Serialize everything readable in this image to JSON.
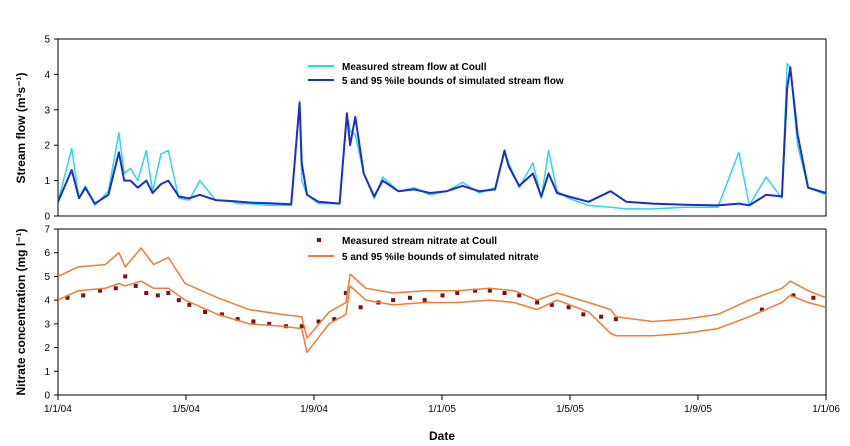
{
  "colors": {
    "measured_flow": "#2ed6e6",
    "sim_flow": "#1a2fc9",
    "measured_nitrate": "#7a1010",
    "sim_nitrate": "#ee7d3a"
  },
  "x_axis": {
    "label": "Date",
    "ticks": [
      "1/1/04",
      "1/5/04",
      "1/9/04",
      "1/1/05",
      "1/5/05",
      "1/9/05",
      "1/1/06"
    ]
  },
  "chart_data": [
    {
      "type": "line",
      "ylabel": "Stream flow (m³s⁻¹)",
      "ylim": [
        0,
        5
      ],
      "yticks": [
        "0",
        "1",
        "2",
        "3",
        "4",
        "5"
      ],
      "xlim": [
        "2004-01-01",
        "2006-01-01"
      ],
      "legend_position": "top-center",
      "series": [
        {
          "name": "Measured stream flow at Coull",
          "x": [
            "2004-01-01",
            "2004-01-14",
            "2004-01-21",
            "2004-01-27",
            "2004-02-05",
            "2004-02-18",
            "2004-02-28",
            "2004-03-04",
            "2004-03-10",
            "2004-03-17",
            "2004-03-25",
            "2004-03-31",
            "2004-04-08",
            "2004-04-15",
            "2004-04-25",
            "2004-05-05",
            "2004-05-15",
            "2004-05-30",
            "2004-06-15",
            "2004-06-20",
            "2004-07-01",
            "2004-07-20",
            "2004-08-10",
            "2004-08-18",
            "2004-08-20",
            "2004-08-25",
            "2004-09-05",
            "2004-09-25",
            "2004-10-02",
            "2004-10-05",
            "2004-10-10",
            "2004-10-18",
            "2004-10-28",
            "2004-11-05",
            "2004-11-20",
            "2004-12-05",
            "2004-12-20",
            "2005-01-05",
            "2005-01-20",
            "2005-02-05",
            "2005-02-20",
            "2005-03-01",
            "2005-03-05",
            "2005-03-15",
            "2005-03-28",
            "2005-04-05",
            "2005-04-12",
            "2005-04-20",
            "2005-05-01",
            "2005-05-20",
            "2005-06-10",
            "2005-06-25",
            "2005-07-20",
            "2005-08-20",
            "2005-09-20",
            "2005-10-10",
            "2005-10-20",
            "2005-11-05",
            "2005-11-20",
            "2005-11-25",
            "2005-11-28",
            "2005-12-05",
            "2005-12-15",
            "2006-01-01"
          ],
          "y": [
            0.4,
            1.9,
            0.5,
            0.85,
            0.3,
            0.7,
            2.35,
            1.2,
            1.35,
            1.0,
            1.85,
            0.7,
            1.75,
            1.85,
            0.5,
            0.45,
            1.0,
            0.45,
            0.4,
            0.35,
            0.35,
            0.3,
            0.3,
            3.25,
            1.0,
            0.6,
            0.35,
            0.35,
            2.85,
            2.4,
            2.3,
            1.2,
            0.5,
            1.1,
            0.7,
            0.8,
            0.6,
            0.7,
            0.95,
            0.65,
            0.8,
            1.8,
            1.5,
            0.8,
            1.5,
            0.5,
            1.85,
            0.7,
            0.5,
            0.3,
            0.25,
            0.2,
            0.2,
            0.25,
            0.25,
            1.8,
            0.3,
            1.1,
            0.5,
            4.3,
            4.2,
            2.0,
            0.8,
            0.6
          ]
        },
        {
          "name": "5 and 95 %ile bounds of simulated stream flow",
          "x": [
            "2004-01-01",
            "2004-01-14",
            "2004-01-21",
            "2004-01-27",
            "2004-02-05",
            "2004-02-18",
            "2004-02-28",
            "2004-03-04",
            "2004-03-10",
            "2004-03-17",
            "2004-03-25",
            "2004-03-31",
            "2004-04-08",
            "2004-04-15",
            "2004-04-25",
            "2004-05-05",
            "2004-05-15",
            "2004-05-30",
            "2004-06-15",
            "2004-07-01",
            "2004-07-20",
            "2004-08-10",
            "2004-08-18",
            "2004-08-20",
            "2004-08-25",
            "2004-09-05",
            "2004-09-25",
            "2004-10-02",
            "2004-10-05",
            "2004-10-10",
            "2004-10-18",
            "2004-10-28",
            "2004-11-05",
            "2004-11-20",
            "2004-12-05",
            "2004-12-20",
            "2005-01-05",
            "2005-01-20",
            "2005-02-05",
            "2005-02-20",
            "2005-03-01",
            "2005-03-05",
            "2005-03-15",
            "2005-03-28",
            "2005-04-05",
            "2005-04-12",
            "2005-04-20",
            "2005-05-01",
            "2005-05-20",
            "2005-06-10",
            "2005-06-25",
            "2005-07-20",
            "2005-08-20",
            "2005-09-20",
            "2005-10-10",
            "2005-10-20",
            "2005-11-05",
            "2005-11-20",
            "2005-11-25",
            "2005-11-28",
            "2005-12-05",
            "2005-12-15",
            "2006-01-01"
          ],
          "y": [
            0.4,
            1.3,
            0.5,
            0.8,
            0.35,
            0.6,
            1.8,
            1.0,
            1.0,
            0.8,
            1.0,
            0.65,
            0.9,
            1.0,
            0.55,
            0.5,
            0.6,
            0.45,
            0.42,
            0.38,
            0.36,
            0.33,
            3.2,
            1.5,
            0.6,
            0.4,
            0.35,
            2.9,
            2.0,
            2.8,
            1.2,
            0.55,
            1.0,
            0.7,
            0.75,
            0.65,
            0.7,
            0.85,
            0.7,
            0.75,
            1.85,
            1.4,
            0.85,
            1.2,
            0.55,
            1.2,
            0.65,
            0.55,
            0.4,
            0.7,
            0.4,
            0.35,
            0.32,
            0.3,
            0.35,
            0.3,
            0.6,
            0.55,
            3.6,
            4.2,
            2.3,
            0.8,
            0.65
          ]
        }
      ]
    },
    {
      "type": "line",
      "ylabel": "Nitrate concentration (mg l⁻¹)",
      "ylim": [
        0,
        7
      ],
      "yticks": [
        "0",
        "1",
        "2",
        "3",
        "4",
        "5",
        "6",
        "7"
      ],
      "xlim": [
        "2004-01-01",
        "2006-01-01"
      ],
      "legend_position": "top-center",
      "series": [
        {
          "name": "Measured stream nitrate at Coull",
          "mode": "scatter",
          "x": [
            "2004-01-10",
            "2004-01-25",
            "2004-02-10",
            "2004-02-25",
            "2004-03-05",
            "2004-03-15",
            "2004-03-25",
            "2004-04-05",
            "2004-04-15",
            "2004-04-25",
            "2004-05-05",
            "2004-05-20",
            "2004-06-05",
            "2004-06-20",
            "2004-07-05",
            "2004-07-20",
            "2004-08-05",
            "2004-08-20",
            "2004-09-05",
            "2004-09-20",
            "2004-10-01",
            "2004-10-15",
            "2004-11-01",
            "2004-11-15",
            "2004-12-01",
            "2004-12-15",
            "2005-01-01",
            "2005-01-15",
            "2005-02-01",
            "2005-02-15",
            "2005-03-01",
            "2005-03-15",
            "2005-04-01",
            "2005-04-15",
            "2005-05-01",
            "2005-05-15",
            "2005-06-01",
            "2005-06-15",
            "2005-11-01",
            "2005-12-01",
            "2005-12-20"
          ],
          "y": [
            4.1,
            4.2,
            4.4,
            4.5,
            5.0,
            4.6,
            4.3,
            4.2,
            4.3,
            4.0,
            3.8,
            3.5,
            3.4,
            3.2,
            3.1,
            3.0,
            2.9,
            2.9,
            3.1,
            3.2,
            4.3,
            3.7,
            3.9,
            4.0,
            4.1,
            4.0,
            4.2,
            4.3,
            4.4,
            4.4,
            4.3,
            4.2,
            3.9,
            3.8,
            3.7,
            3.4,
            3.3,
            3.2,
            3.6,
            4.2,
            4.1
          ]
        },
        {
          "name": "5 and 95 %ile bounds of simulated nitrate",
          "x": [
            "2004-01-01",
            "2004-01-20",
            "2004-02-15",
            "2004-02-28",
            "2004-03-05",
            "2004-03-20",
            "2004-04-01",
            "2004-04-15",
            "2004-05-01",
            "2004-06-01",
            "2004-07-01",
            "2004-08-01",
            "2004-08-20",
            "2004-08-25",
            "2004-09-15",
            "2004-10-01",
            "2004-10-05",
            "2004-10-20",
            "2004-11-15",
            "2004-12-15",
            "2005-01-15",
            "2005-02-15",
            "2005-03-10",
            "2005-04-01",
            "2005-04-20",
            "2005-05-20",
            "2005-06-10",
            "2005-06-15",
            "2005-07-20",
            "2005-08-20",
            "2005-09-20",
            "2005-10-20",
            "2005-11-20",
            "2005-11-28",
            "2005-12-15",
            "2006-01-01"
          ],
          "y": [
            5.0,
            5.4,
            5.5,
            6.0,
            5.4,
            6.2,
            5.5,
            5.8,
            4.7,
            4.1,
            3.6,
            3.4,
            3.3,
            2.4,
            3.5,
            3.9,
            5.1,
            4.5,
            4.3,
            4.4,
            4.4,
            4.5,
            4.4,
            4.0,
            4.3,
            3.9,
            3.6,
            3.3,
            3.1,
            3.2,
            3.4,
            4.0,
            4.5,
            4.8,
            4.4,
            4.1
          ]
        },
        {
          "name": "",
          "x": [
            "2004-01-01",
            "2004-01-20",
            "2004-02-15",
            "2004-02-28",
            "2004-03-05",
            "2004-03-20",
            "2004-04-01",
            "2004-04-15",
            "2004-05-01",
            "2004-06-01",
            "2004-07-01",
            "2004-08-01",
            "2004-08-20",
            "2004-08-25",
            "2004-09-15",
            "2004-10-01",
            "2004-10-05",
            "2004-10-20",
            "2004-11-15",
            "2004-12-15",
            "2005-01-15",
            "2005-02-15",
            "2005-03-10",
            "2005-04-01",
            "2005-04-20",
            "2005-05-20",
            "2005-06-10",
            "2005-06-15",
            "2005-07-20",
            "2005-08-20",
            "2005-09-20",
            "2005-10-20",
            "2005-11-20",
            "2005-11-28",
            "2005-12-15",
            "2006-01-01"
          ],
          "y": [
            4.0,
            4.4,
            4.5,
            4.7,
            4.6,
            4.8,
            4.5,
            4.5,
            4.0,
            3.4,
            3.0,
            2.9,
            2.8,
            1.8,
            3.0,
            3.4,
            4.6,
            4.0,
            3.8,
            3.9,
            3.9,
            4.0,
            3.9,
            3.6,
            4.0,
            3.5,
            2.6,
            2.5,
            2.5,
            2.6,
            2.8,
            3.3,
            3.9,
            4.2,
            3.9,
            3.7
          ]
        }
      ]
    }
  ]
}
